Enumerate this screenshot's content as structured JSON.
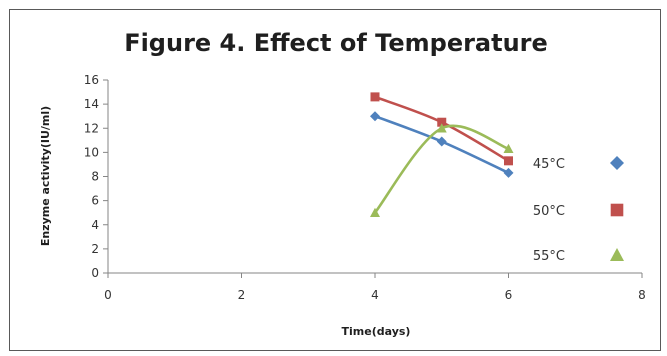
{
  "chart_data": {
    "type": "line",
    "title": "Figure 4. Effect of Temperature",
    "xlabel": "Time(days)",
    "ylabel": "Enzyme activity(IU/ml)",
    "xlim": [
      0,
      8
    ],
    "ylim": [
      0,
      16
    ],
    "x_ticks": [
      0,
      2,
      4,
      6,
      8
    ],
    "y_ticks": [
      0,
      2,
      4,
      6,
      8,
      10,
      12,
      14,
      16
    ],
    "grid": false,
    "legend_position": "right",
    "series": [
      {
        "name": "45°C",
        "color": "#4f81bd",
        "marker": "diamond",
        "x": [
          4,
          5,
          6
        ],
        "y": [
          13.0,
          10.9,
          8.3
        ]
      },
      {
        "name": "50°C",
        "color": "#c0504d",
        "marker": "square",
        "x": [
          4,
          5,
          6
        ],
        "y": [
          14.6,
          12.5,
          9.3
        ]
      },
      {
        "name": "55°C",
        "color": "#9bbb59",
        "marker": "triangle",
        "x": [
          4,
          5,
          6
        ],
        "y": [
          5.0,
          12.0,
          10.3
        ]
      }
    ]
  }
}
